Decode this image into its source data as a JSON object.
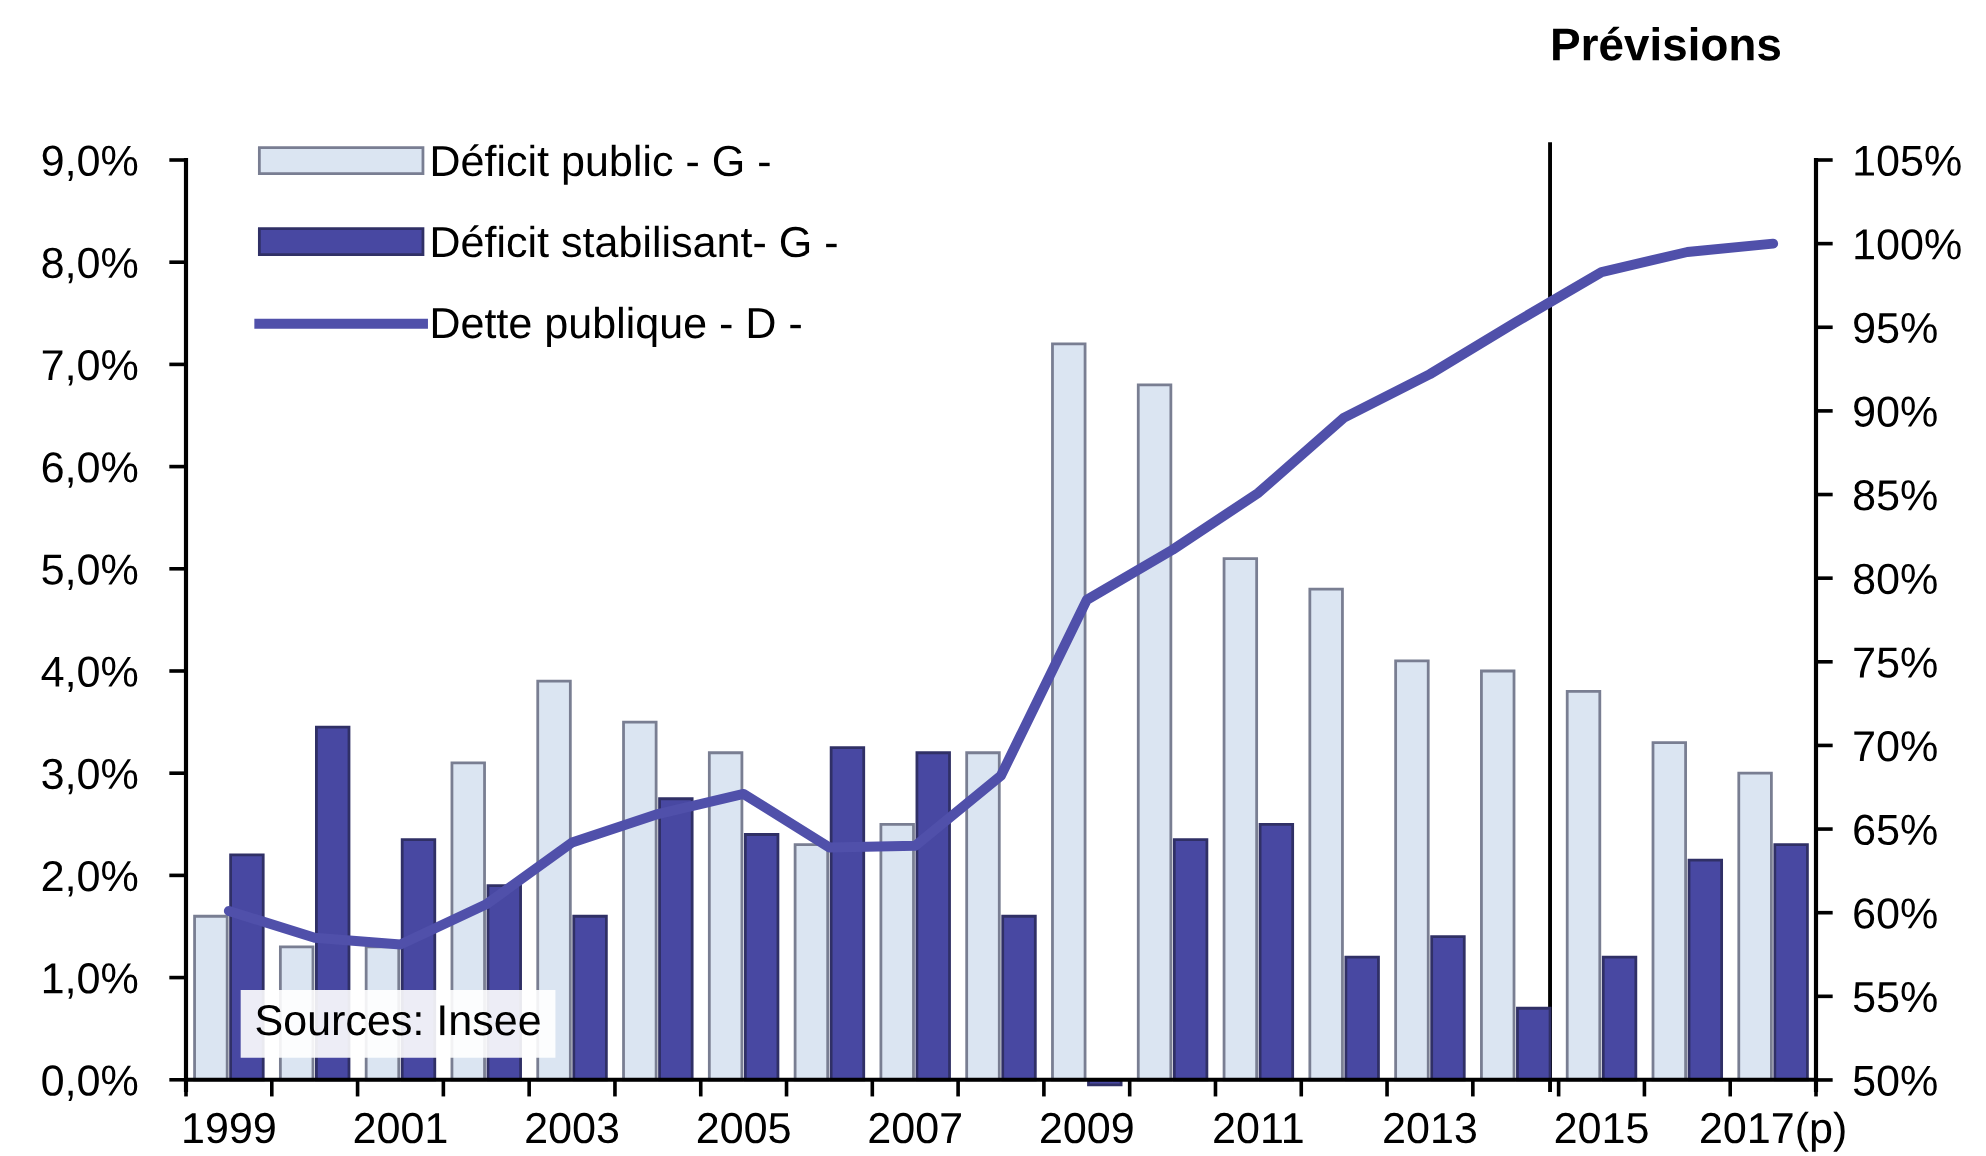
{
  "chart_data": {
    "type": "bar",
    "x": [
      1999,
      2000,
      2001,
      2002,
      2003,
      2004,
      2005,
      2006,
      2007,
      2008,
      2009,
      2010,
      2011,
      2012,
      2013,
      2014,
      2015,
      2016,
      2017
    ],
    "series": [
      {
        "name": "Déficit public - G -",
        "color": "#dbe5f2",
        "values": [
          1.6,
          1.3,
          1.3,
          3.1,
          3.9,
          3.5,
          3.2,
          2.3,
          2.5,
          3.2,
          7.2,
          6.8,
          5.1,
          4.8,
          4.1,
          4.0,
          3.8,
          3.3,
          3.0
        ]
      },
      {
        "name": "Déficit stabilisant- G -",
        "color": "#4848a2",
        "values": [
          2.2,
          3.45,
          2.35,
          1.9,
          1.6,
          2.75,
          2.4,
          3.25,
          3.2,
          1.6,
          -0.05,
          2.35,
          2.5,
          1.2,
          1.4,
          0.7,
          1.2,
          2.15,
          2.3
        ]
      },
      {
        "name": "Dette publique - D -",
        "type": "line",
        "axis": "y2",
        "color": "#5050aa",
        "values": [
          60.1,
          58.5,
          58.1,
          60.5,
          64.2,
          65.9,
          67.1,
          63.9,
          64.0,
          68.2,
          78.7,
          81.7,
          85.1,
          89.6,
          92.2,
          95.3,
          98.3,
          99.5,
          100.0
        ]
      }
    ],
    "xlim": [
      1998.5,
      2017.5
    ],
    "xticks": [
      1999,
      2001,
      2003,
      2005,
      2007,
      2009,
      2011,
      2013,
      2015,
      {
        "value": 2017,
        "label": "2017(p)"
      },
      {
        "value": 1998.5,
        "label": null
      },
      {
        "value": 1999.5,
        "label": null
      },
      {
        "value": 2000.5,
        "label": null
      },
      {
        "value": 2001.5,
        "label": null
      },
      {
        "value": 2002.5,
        "label": null
      },
      {
        "value": 2003.5,
        "label": null
      },
      {
        "value": 2004.5,
        "label": null
      },
      {
        "value": 2005.5,
        "label": null
      },
      {
        "value": 2006.5,
        "label": null
      },
      {
        "value": 2007.5,
        "label": null
      },
      {
        "value": 2008.5,
        "label": null
      },
      {
        "value": 2009.5,
        "label": null
      },
      {
        "value": 2010.5,
        "label": null
      },
      {
        "value": 2011.5,
        "label": null
      },
      {
        "value": 2012.5,
        "label": null
      },
      {
        "value": 2013.5,
        "label": null
      },
      {
        "value": 2014.5,
        "label": null
      },
      {
        "value": 2015.5,
        "label": null
      },
      {
        "value": 2016.5,
        "label": null
      },
      {
        "value": 2017.5,
        "label": null
      }
    ],
    "ylim": [
      -0.1,
      9
    ],
    "yticks": [
      {
        "value": 0,
        "label": "0,0%"
      },
      {
        "value": 1,
        "label": "1,0%"
      },
      {
        "value": 2,
        "label": "2,0%"
      },
      {
        "value": 3,
        "label": "3,0%"
      },
      {
        "value": 4,
        "label": "4,0%"
      },
      {
        "value": 5,
        "label": "5,0%"
      },
      {
        "value": 6,
        "label": "6,0%"
      },
      {
        "value": 7,
        "label": "7,0%"
      },
      {
        "value": 8,
        "label": "8,0%"
      },
      {
        "value": 9,
        "label": "9,0%"
      }
    ],
    "y2lim": [
      49.4,
      105
    ],
    "y2ticks": [
      {
        "value": 50,
        "label": "50%"
      },
      {
        "value": 55,
        "label": "55%"
      },
      {
        "value": 60,
        "label": "60%"
      },
      {
        "value": 65,
        "label": "65%"
      },
      {
        "value": 70,
        "label": "70%"
      },
      {
        "value": 75,
        "label": "75%"
      },
      {
        "value": 80,
        "label": "80%"
      },
      {
        "value": 85,
        "label": "85%"
      },
      {
        "value": 90,
        "label": "90%"
      },
      {
        "value": 95,
        "label": "95%"
      },
      {
        "value": 100,
        "label": "100%"
      },
      {
        "value": 105,
        "label": "105%"
      }
    ],
    "ref_lines": [
      {
        "axis": "x",
        "value": 2014.4,
        "label": "Prévisions",
        "color": "#000000"
      }
    ],
    "annotations": [
      "Sources: Insee"
    ],
    "legend": "top left",
    "grid": false
  }
}
